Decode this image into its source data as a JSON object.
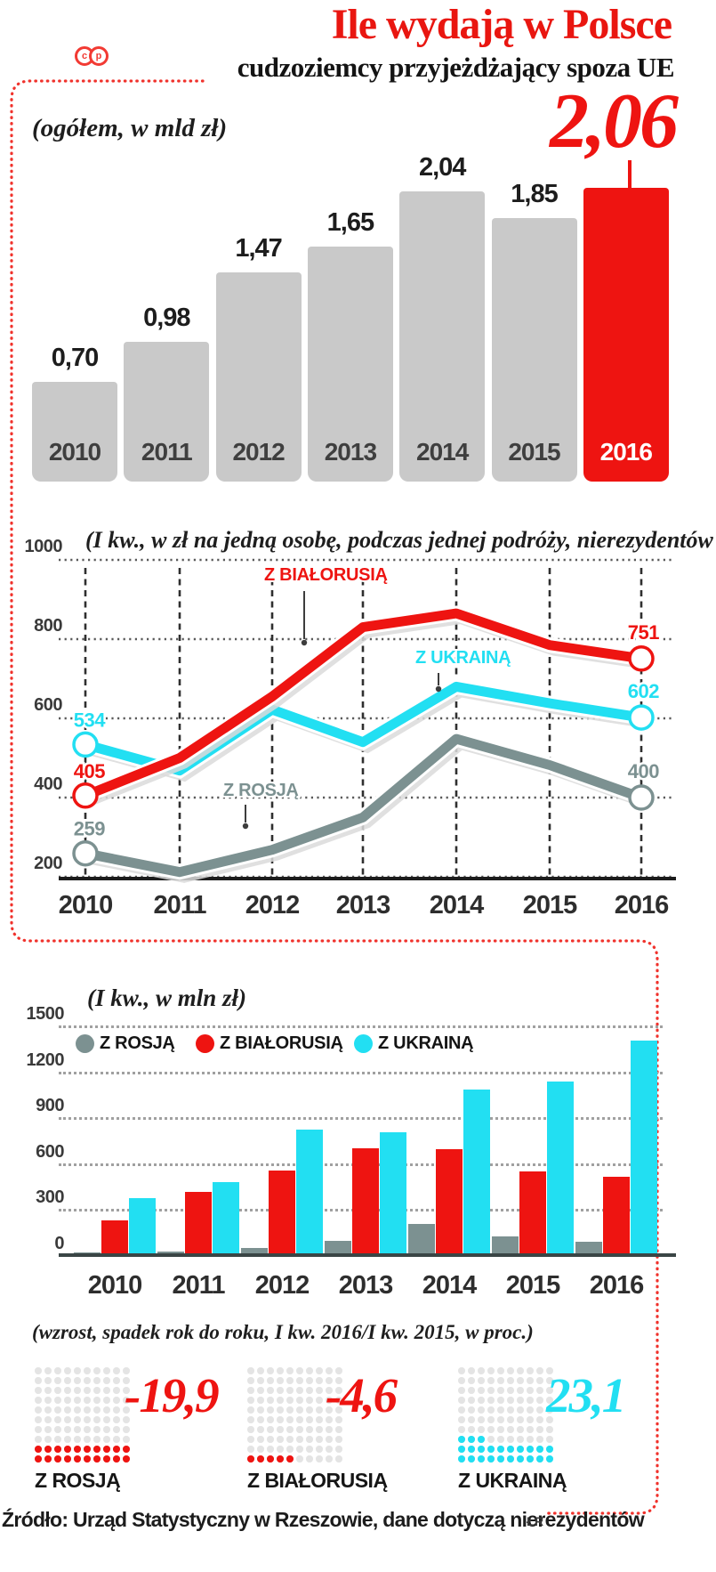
{
  "header": {
    "badge_letters": [
      "c",
      "p"
    ],
    "title": "Ile wydają w Polsce",
    "subtitle": "cudzoziemcy przyjeżdżający spoza UE"
  },
  "source": {
    "text": "Źródło: Urząd Statystyczny w Rzeszowie, dane dotyczą nierezydentów",
    "credit": "ŁR"
  },
  "colors": {
    "red": "#ee1411",
    "cyan": "#22dff2",
    "slate": "#7c9191",
    "bar_gray": "#c9c9c9",
    "waffle_empty": "#e4e4e4"
  },
  "chart_data": [
    {
      "type": "bar",
      "title": "(ogółem, w mld zł)",
      "categories": [
        "2010",
        "2011",
        "2012",
        "2013",
        "2014",
        "2015",
        "2016"
      ],
      "values": [
        0.7,
        0.98,
        1.47,
        1.65,
        2.04,
        1.85,
        2.06
      ],
      "value_labels": [
        "0,70",
        "0,98",
        "1,47",
        "1,65",
        "2,04",
        "1,85",
        "2,06"
      ],
      "highlight_index": 6,
      "highlight_value_label": "2,06",
      "bar_color": "#c9c9c9",
      "highlight_color": "#ee1411",
      "ylim": [
        0,
        2.2
      ]
    },
    {
      "type": "line",
      "title": "(I kw., w zł na jedną osobę, podczas jednej podróży, nierezydentów )",
      "x": [
        "2010",
        "2011",
        "2012",
        "2013",
        "2014",
        "2015",
        "2016"
      ],
      "yticks": [
        1000,
        800,
        600,
        400,
        200
      ],
      "ylim": [
        200,
        1000
      ],
      "series": [
        {
          "name": "Z ROSJĄ",
          "color": "#7c9191",
          "values": [
            259,
            212,
            268,
            350,
            548,
            482,
            400
          ],
          "first_label": "259",
          "last_label": "400"
        },
        {
          "name": "Z UKRAINĄ",
          "color": "#22dff2",
          "values": [
            534,
            468,
            622,
            540,
            680,
            638,
            602
          ],
          "first_label": "534",
          "last_label": "602"
        },
        {
          "name": "Z BIAŁORUSIĄ",
          "color": "#ee1411",
          "values": [
            405,
            500,
            655,
            830,
            865,
            785,
            751
          ],
          "first_label": "405",
          "last_label": "751"
        }
      ]
    },
    {
      "type": "grouped-bar",
      "title": "(I kw., w mln zł)",
      "categories": [
        "2010",
        "2011",
        "2012",
        "2013",
        "2014",
        "2015",
        "2016"
      ],
      "yticks": [
        1500,
        1200,
        900,
        600,
        300,
        0
      ],
      "ylim": [
        0,
        1500
      ],
      "series": [
        {
          "name": "Z ROSJĄ",
          "color": "#7c9191",
          "values": [
            15,
            25,
            45,
            95,
            205,
            120,
            90
          ]
        },
        {
          "name": "Z BIAŁORUSIĄ",
          "color": "#ee1411",
          "values": [
            230,
            415,
            555,
            700,
            695,
            545,
            515
          ]
        },
        {
          "name": "Z UKRAINĄ",
          "color": "#22dff2",
          "values": [
            375,
            480,
            820,
            805,
            1085,
            1135,
            1405
          ]
        }
      ]
    },
    {
      "type": "waffle",
      "title": "(wzrost, spadek rok do roku, I kw. 2016/I kw. 2015, w proc.)",
      "grid": {
        "rows": 10,
        "cols": 10
      },
      "items": [
        {
          "label": "Z ROSJĄ",
          "value": -19.9,
          "value_label": "-19,9",
          "color": "#ee1411",
          "filled_dots": 20
        },
        {
          "label": "Z BIAŁORUSIĄ",
          "value": -4.6,
          "value_label": "-4,6",
          "color": "#ee1411",
          "filled_dots": 5
        },
        {
          "label": "Z UKRAINĄ",
          "value": 23.1,
          "value_label": "23,1",
          "color": "#22dff2",
          "filled_dots": 23
        }
      ]
    }
  ]
}
